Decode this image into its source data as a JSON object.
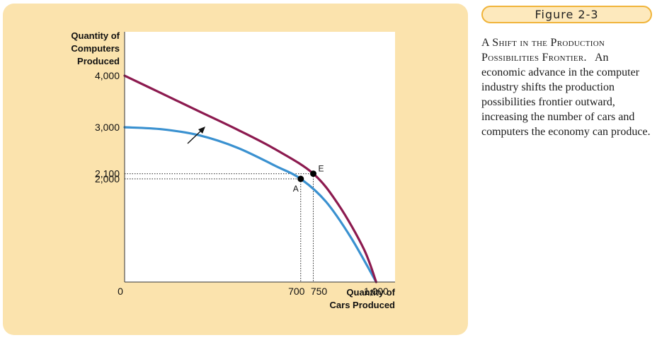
{
  "figure": {
    "tag": "Figure 2-3",
    "caption_title": "A Shift in the Production Possibilities Frontier.",
    "caption_body": "An economic advance in the computer industry shifts the production possibilities frontier outward, increasing the number of cars and computers the economy can produce."
  },
  "chart_data": {
    "type": "line",
    "ylabel_lines": [
      "Quantity of",
      "Computers",
      "Produced"
    ],
    "xlabel_lines": [
      "Quantity of",
      "Cars Produced"
    ],
    "xlim": [
      0,
      1075
    ],
    "ylim": [
      0,
      4850
    ],
    "origin_label": "0",
    "x_ticks": [
      {
        "value": 700,
        "label": "700"
      },
      {
        "value": 750,
        "label": "750"
      },
      {
        "value": 1000,
        "label": "1,000"
      }
    ],
    "y_ticks": [
      {
        "value": 4000,
        "label": "4,000"
      },
      {
        "value": 3000,
        "label": "3,000"
      },
      {
        "value": 2100,
        "label": "2,100"
      },
      {
        "value": 2000,
        "label": "2,000"
      }
    ],
    "series": [
      {
        "key": "original",
        "color": "#3a91d0",
        "x": [
          0,
          150,
          300,
          450,
          600,
          700,
          800,
          900,
          1000
        ],
        "y": [
          3000,
          2960,
          2840,
          2600,
          2250,
          2000,
          1560,
          860,
          0
        ]
      },
      {
        "key": "shifted",
        "color": "#8c1a4f",
        "x": [
          0,
          150,
          300,
          450,
          600,
          750,
          850,
          950,
          1000
        ],
        "y": [
          4000,
          3650,
          3300,
          2950,
          2570,
          2100,
          1500,
          650,
          0
        ]
      }
    ],
    "points": [
      {
        "label": "A",
        "x": 700,
        "y": 2000
      },
      {
        "label": "E",
        "x": 750,
        "y": 2100
      }
    ],
    "grid": false
  }
}
